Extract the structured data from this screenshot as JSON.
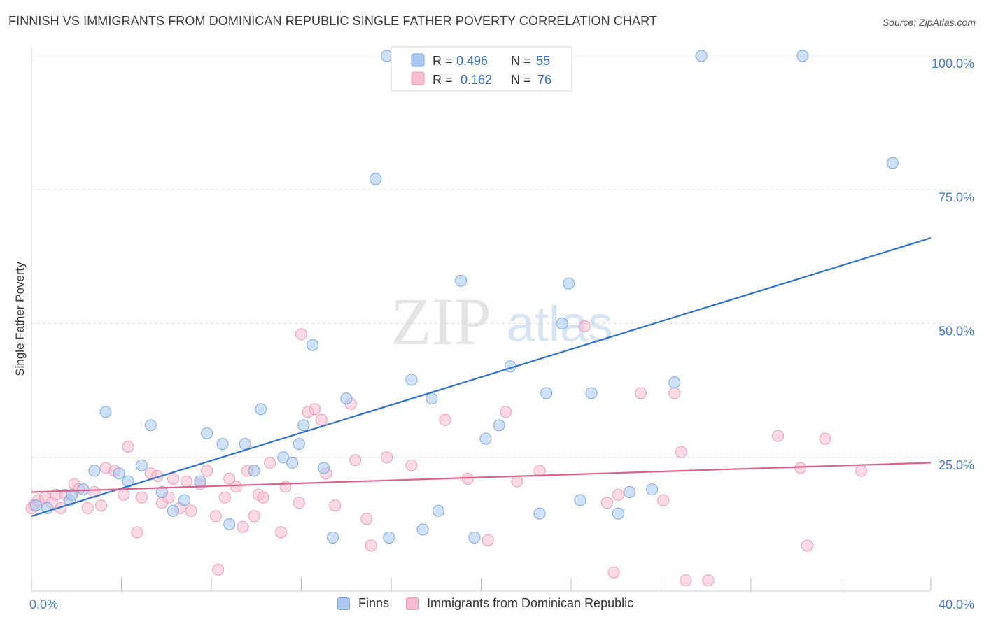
{
  "title": "FINNISH VS IMMIGRANTS FROM DOMINICAN REPUBLIC SINGLE FATHER POVERTY CORRELATION CHART",
  "source": "Source: ZipAtlas.com",
  "watermark": {
    "zip": "ZIP",
    "atlas": "atlas"
  },
  "colors": {
    "blue_fill": "#a8c8f0",
    "blue_stroke": "#7aa8e0",
    "blue_line": "#2e72d2",
    "pink_fill": "#f7bccd",
    "pink_stroke": "#ef9ab5",
    "pink_line": "#e0608a",
    "tick_label": "#4a7cc8"
  },
  "legend": {
    "finns": {
      "r_label": "R =",
      "r_value": "0.496",
      "n_label": "N =",
      "n_value": "55"
    },
    "dominican": {
      "r_label": "R =",
      "r_value": "0.162",
      "n_label": "N =",
      "n_value": "76"
    }
  },
  "chart_data": {
    "type": "scatter",
    "title": "FINNISH VS IMMIGRANTS FROM DOMINICAN REPUBLIC SINGLE FATHER POVERTY CORRELATION CHART",
    "xlabel": "",
    "ylabel": "Single Father Poverty",
    "xlim": [
      0,
      40
    ],
    "ylim": [
      0,
      100
    ],
    "x_tick_labels": [
      "0.0%",
      "40.0%"
    ],
    "y_tick_labels": [
      "25.0%",
      "50.0%",
      "75.0%",
      "100.0%"
    ],
    "y_ticks": [
      25,
      50,
      75,
      100
    ],
    "grid": true,
    "legend_position": "top-center",
    "series": [
      {
        "name": "Finns",
        "color": "#a8c8f0",
        "trend": {
          "x": [
            0,
            40
          ],
          "y": [
            14.0,
            66.0
          ]
        },
        "points": [
          [
            0.2,
            16.0
          ],
          [
            0.7,
            15.5
          ],
          [
            1.7,
            17.0
          ],
          [
            1.8,
            18.0
          ],
          [
            2.3,
            19.0
          ],
          [
            2.8,
            22.5
          ],
          [
            3.3,
            33.5
          ],
          [
            3.9,
            22.0
          ],
          [
            4.3,
            20.5
          ],
          [
            4.9,
            23.5
          ],
          [
            5.3,
            31.0
          ],
          [
            5.8,
            18.5
          ],
          [
            6.3,
            15.0
          ],
          [
            6.8,
            17.0
          ],
          [
            7.5,
            20.5
          ],
          [
            7.8,
            29.5
          ],
          [
            8.5,
            27.5
          ],
          [
            8.8,
            12.5
          ],
          [
            9.5,
            27.5
          ],
          [
            9.9,
            22.5
          ],
          [
            10.2,
            34.0
          ],
          [
            11.2,
            25.0
          ],
          [
            11.6,
            24.0
          ],
          [
            11.9,
            27.5
          ],
          [
            12.1,
            31.0
          ],
          [
            12.5,
            46.0
          ],
          [
            13.0,
            23.0
          ],
          [
            13.4,
            10.0
          ],
          [
            14.0,
            36.0
          ],
          [
            15.3,
            77.0
          ],
          [
            15.8,
            100.0
          ],
          [
            15.9,
            10.0
          ],
          [
            16.9,
            39.5
          ],
          [
            17.4,
            11.5
          ],
          [
            17.8,
            36.0
          ],
          [
            18.1,
            15.0
          ],
          [
            19.1,
            58.0
          ],
          [
            19.7,
            10.0
          ],
          [
            20.2,
            28.5
          ],
          [
            20.8,
            31.0
          ],
          [
            21.3,
            42.0
          ],
          [
            21.9,
            100.0
          ],
          [
            22.6,
            14.5
          ],
          [
            22.9,
            37.0
          ],
          [
            23.6,
            50.0
          ],
          [
            23.9,
            57.5
          ],
          [
            24.4,
            17.0
          ],
          [
            24.9,
            37.0
          ],
          [
            26.1,
            14.5
          ],
          [
            26.6,
            18.5
          ],
          [
            27.6,
            19.0
          ],
          [
            28.6,
            39.0
          ],
          [
            29.8,
            100.0
          ],
          [
            34.3,
            100.0
          ],
          [
            38.3,
            80.0
          ]
        ]
      },
      {
        "name": "Immigrants from Dominican Republic",
        "color": "#f7bccd",
        "trend": {
          "x": [
            0,
            40
          ],
          "y": [
            18.5,
            24.0
          ]
        },
        "points": [
          [
            0.1,
            16.0
          ],
          [
            0.3,
            17.0
          ],
          [
            0.6,
            17.5
          ],
          [
            0.9,
            16.5
          ],
          [
            1.1,
            18.0
          ],
          [
            1.3,
            15.5
          ],
          [
            1.5,
            18.0
          ],
          [
            1.9,
            20.0
          ],
          [
            2.1,
            19.0
          ],
          [
            2.5,
            15.5
          ],
          [
            2.8,
            18.5
          ],
          [
            3.1,
            16.0
          ],
          [
            3.3,
            23.0
          ],
          [
            3.7,
            22.5
          ],
          [
            4.1,
            18.0
          ],
          [
            4.3,
            27.0
          ],
          [
            4.7,
            11.0
          ],
          [
            4.9,
            17.5
          ],
          [
            5.3,
            22.0
          ],
          [
            5.6,
            21.5
          ],
          [
            5.8,
            16.5
          ],
          [
            6.1,
            17.5
          ],
          [
            6.3,
            21.0
          ],
          [
            6.6,
            15.5
          ],
          [
            6.9,
            20.5
          ],
          [
            7.1,
            15.0
          ],
          [
            7.5,
            20.0
          ],
          [
            7.8,
            22.5
          ],
          [
            8.2,
            14.0
          ],
          [
            8.3,
            4.0
          ],
          [
            8.6,
            17.5
          ],
          [
            8.8,
            21.0
          ],
          [
            9.1,
            19.5
          ],
          [
            9.4,
            12.0
          ],
          [
            9.6,
            22.5
          ],
          [
            9.9,
            14.0
          ],
          [
            10.1,
            18.0
          ],
          [
            10.3,
            17.5
          ],
          [
            10.6,
            24.0
          ],
          [
            11.1,
            11.0
          ],
          [
            11.3,
            19.5
          ],
          [
            11.9,
            16.5
          ],
          [
            12.3,
            33.5
          ],
          [
            12.6,
            34.0
          ],
          [
            12.9,
            32.0
          ],
          [
            13.1,
            22.0
          ],
          [
            13.5,
            16.0
          ],
          [
            14.2,
            35.0
          ],
          [
            14.4,
            24.5
          ],
          [
            14.9,
            13.5
          ],
          [
            15.1,
            8.5
          ],
          [
            15.8,
            25.0
          ],
          [
            16.9,
            23.5
          ],
          [
            18.4,
            32.0
          ],
          [
            19.4,
            21.0
          ],
          [
            20.3,
            9.5
          ],
          [
            21.1,
            33.5
          ],
          [
            21.6,
            20.5
          ],
          [
            22.6,
            22.5
          ],
          [
            24.6,
            49.5
          ],
          [
            25.6,
            16.5
          ],
          [
            25.9,
            3.5
          ],
          [
            26.1,
            18.0
          ],
          [
            27.1,
            37.0
          ],
          [
            28.1,
            17.0
          ],
          [
            28.6,
            37.0
          ],
          [
            28.9,
            26.0
          ],
          [
            29.1,
            2.0
          ],
          [
            30.1,
            2.0
          ],
          [
            33.2,
            29.0
          ],
          [
            34.2,
            23.0
          ],
          [
            34.5,
            8.5
          ],
          [
            35.3,
            28.5
          ],
          [
            36.9,
            22.5
          ],
          [
            12.0,
            48.0
          ],
          [
            0.0,
            15.5
          ]
        ]
      }
    ]
  },
  "bottom_legend": {
    "finns": "Finns",
    "dominican": "Immigrants from Dominican Republic"
  }
}
